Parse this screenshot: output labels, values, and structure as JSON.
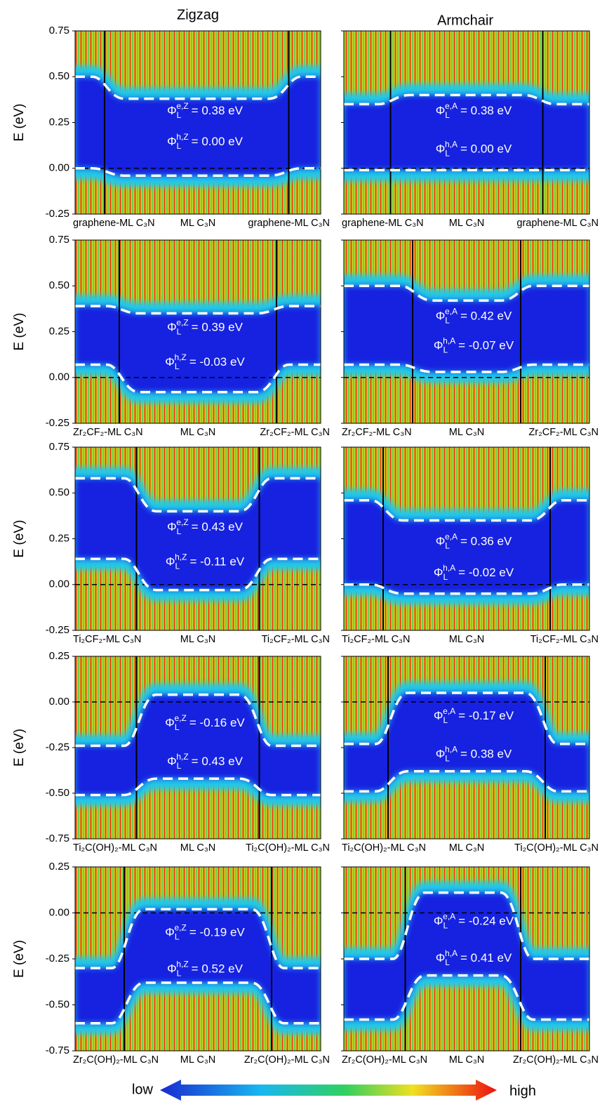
{
  "columns": [
    "Zigzag",
    "Armchair"
  ],
  "rows": [
    {
      "ylabel": "E (eV)",
      "yticks": [
        "0.75",
        "0.50",
        "0.25",
        "0.00",
        "-0.25"
      ],
      "panels": [
        {
          "labels": [
            "graphene-ML C₃N",
            "ML C₃N",
            "graphene-ML C₃N"
          ],
          "phi": [
            {
              "symbol": "Φ",
              "sub": "L",
              "sup": "e,Z",
              "text": "= 0.38 eV"
            },
            {
              "symbol": "Φ",
              "sub": "L",
              "sup": "h,Z",
              "text": "= 0.00 eV"
            }
          ]
        },
        {
          "labels": [
            "graphene-ML C₃N",
            "ML C₃N",
            "graphene-ML C₃N"
          ],
          "phi": [
            {
              "symbol": "Φ",
              "sub": "L",
              "sup": "e,A",
              "text": "= 0.38 eV"
            },
            {
              "symbol": "Φ",
              "sub": "L",
              "sup": "h,A",
              "text": "= 0.00 eV"
            }
          ]
        }
      ]
    },
    {
      "ylabel": "E (eV)",
      "yticks": [
        "0.75",
        "0.50",
        "0.25",
        "0.00",
        "-0.25"
      ],
      "panels": [
        {
          "labels": [
            "Zr₂CF₂-ML C₃N",
            "ML C₃N",
            "Zr₂CF₂-ML C₃N"
          ],
          "phi": [
            {
              "symbol": "Φ",
              "sub": "L",
              "sup": "e,Z",
              "text": "= 0.39 eV"
            },
            {
              "symbol": "Φ",
              "sub": "L",
              "sup": "h,Z",
              "text": "= -0.03 eV"
            }
          ]
        },
        {
          "labels": [
            "Zr₂CF₂-ML C₃N",
            "ML C₃N",
            "Zr₂CF₂-ML C₃N"
          ],
          "phi": [
            {
              "symbol": "Φ",
              "sub": "L",
              "sup": "e,A",
              "text": "= 0.42 eV"
            },
            {
              "symbol": "Φ",
              "sub": "L",
              "sup": "h,A",
              "text": "= -0.07 eV"
            }
          ]
        }
      ]
    },
    {
      "ylabel": "E (eV)",
      "yticks": [
        "0.75",
        "0.50",
        "0.25",
        "0.00",
        "-0.25"
      ],
      "panels": [
        {
          "labels": [
            "Ti₂CF₂-ML C₃N",
            "ML C₃N",
            "Ti₂CF₂-ML C₃N"
          ],
          "phi": [
            {
              "symbol": "Φ",
              "sub": "L",
              "sup": "e,Z",
              "text": "= 0.43 eV"
            },
            {
              "symbol": "Φ",
              "sub": "L",
              "sup": "h,Z",
              "text": "= -0.11 eV"
            }
          ]
        },
        {
          "labels": [
            "Ti₂CF₂-ML C₃N",
            "ML C₃N",
            "Ti₂CF₂-ML C₃N"
          ],
          "phi": [
            {
              "symbol": "Φ",
              "sub": "L",
              "sup": "e,A",
              "text": "= 0.36 eV"
            },
            {
              "symbol": "Φ",
              "sub": "L",
              "sup": "h,A",
              "text": "= -0.02 eV"
            }
          ]
        }
      ]
    },
    {
      "ylabel": "E (eV)",
      "yticks": [
        "0.25",
        "0.00",
        "-0.25",
        "-0.50",
        "-0.75"
      ],
      "panels": [
        {
          "labels": [
            "Ti₂C(OH)₂-ML C₃N",
            "ML C₃N",
            "Ti₂C(OH)₂-ML C₃N"
          ],
          "phi": [
            {
              "symbol": "Φ",
              "sub": "L",
              "sup": "e,Z",
              "text": "= -0.16 eV"
            },
            {
              "symbol": "Φ",
              "sub": "L",
              "sup": "h,Z",
              "text": "= 0.43 eV"
            }
          ]
        },
        {
          "labels": [
            "Ti₂C(OH)₂-ML C₃N",
            "ML C₃N",
            "Ti₂C(OH)₂-ML C₃N"
          ],
          "phi": [
            {
              "symbol": "Φ",
              "sub": "L",
              "sup": "e,A",
              "text": "= -0.17 eV"
            },
            {
              "symbol": "Φ",
              "sub": "L",
              "sup": "h,A",
              "text": "= 0.38 eV"
            }
          ]
        }
      ]
    },
    {
      "ylabel": "E (eV)",
      "yticks": [
        "0.25",
        "0.00",
        "-0.25",
        "-0.50",
        "-0.75"
      ],
      "panels": [
        {
          "labels": [
            "Zr₂C(OH)₂-ML C₃N",
            "ML C₃N",
            "Zr₂C(OH)₂-ML C₃N"
          ],
          "phi": [
            {
              "symbol": "Φ",
              "sub": "L",
              "sup": "e,Z",
              "text": "= -0.19 eV"
            },
            {
              "symbol": "Φ",
              "sub": "L",
              "sup": "h,Z",
              "text": "= 0.52 eV"
            }
          ]
        },
        {
          "labels": [
            "Zr₂C(OH)₂-ML C₃N",
            "ML C₃N",
            "Zr₂C(OH)₂-ML C₃N"
          ],
          "phi": [
            {
              "symbol": "Φ",
              "sub": "L",
              "sup": "e,A",
              "text": "= -0.24 eV"
            },
            {
              "symbol": "Φ",
              "sub": "L",
              "sup": "h,A",
              "text": "= 0.41 eV"
            }
          ]
        }
      ]
    }
  ],
  "legend": {
    "low": "low",
    "high": "high"
  }
}
